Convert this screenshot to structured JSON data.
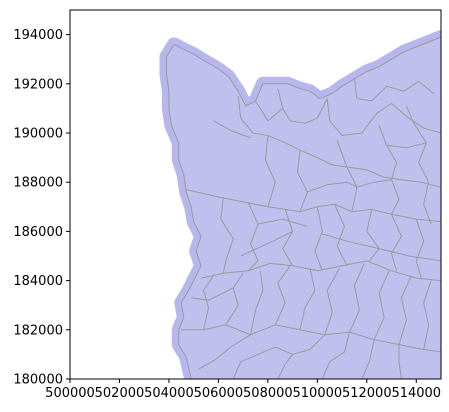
{
  "chart_data": {
    "type": "map",
    "title": "",
    "xlabel": "",
    "ylabel": "",
    "xlim": [
      500000,
      515000
    ],
    "ylim": [
      180000,
      195000
    ],
    "x_ticks": [
      "500000",
      "502000",
      "504000",
      "506000",
      "508000",
      "510000",
      "512000",
      "514000"
    ],
    "y_ticks": [
      "180000",
      "182000",
      "184000",
      "186000",
      "188000",
      "190000",
      "192000",
      "194000"
    ],
    "grid": false,
    "fill_color": "#c0c0ee",
    "halo_color": "#b7b7ee",
    "boundary_color": "#9a9a9a",
    "outline": [
      [
        503900,
        193100
      ],
      [
        504200,
        193600
      ],
      [
        504600,
        193400
      ],
      [
        505000,
        193200
      ],
      [
        505500,
        192900
      ],
      [
        506000,
        192600
      ],
      [
        506400,
        192300
      ],
      [
        506800,
        191700
      ],
      [
        507100,
        191100
      ],
      [
        507500,
        191300
      ],
      [
        507800,
        192000
      ],
      [
        508300,
        192000
      ],
      [
        508800,
        192000
      ],
      [
        509300,
        191800
      ],
      [
        509700,
        191700
      ],
      [
        510100,
        191400
      ],
      [
        510600,
        191600
      ],
      [
        511000,
        191900
      ],
      [
        511500,
        192200
      ],
      [
        512000,
        192500
      ],
      [
        512500,
        192700
      ],
      [
        513000,
        193000
      ],
      [
        513500,
        193300
      ],
      [
        514000,
        193500
      ],
      [
        514500,
        193700
      ],
      [
        515000,
        193900
      ],
      [
        515000,
        180000
      ],
      [
        504900,
        180000
      ],
      [
        504700,
        180900
      ],
      [
        504400,
        181400
      ],
      [
        504400,
        182000
      ],
      [
        504600,
        182500
      ],
      [
        504500,
        183100
      ],
      [
        504800,
        183600
      ],
      [
        505100,
        184200
      ],
      [
        505300,
        184600
      ],
      [
        505100,
        185200
      ],
      [
        505300,
        185800
      ],
      [
        505000,
        186400
      ],
      [
        504900,
        187000
      ],
      [
        504700,
        187600
      ],
      [
        504600,
        188300
      ],
      [
        504400,
        188900
      ],
      [
        504400,
        189600
      ],
      [
        504100,
        190300
      ],
      [
        504000,
        191000
      ],
      [
        504000,
        191700
      ],
      [
        503900,
        192400
      ]
    ],
    "boundaries": [
      [
        [
          504700,
          187700
        ],
        [
          506000,
          187400
        ],
        [
          507000,
          187200
        ],
        [
          508000,
          187000
        ],
        [
          508700,
          186900
        ],
        [
          509300,
          186800
        ],
        [
          510000,
          187000
        ],
        [
          510700,
          187100
        ],
        [
          511400,
          186800
        ],
        [
          512200,
          186900
        ],
        [
          513000,
          186700
        ],
        [
          514000,
          186500
        ],
        [
          515000,
          186400
        ]
      ],
      [
        [
          505300,
          184100
        ],
        [
          506200,
          184300
        ],
        [
          507200,
          184400
        ],
        [
          508100,
          184700
        ],
        [
          509000,
          184600
        ],
        [
          510000,
          184400
        ],
        [
          511000,
          184600
        ],
        [
          512000,
          184800
        ],
        [
          513000,
          184400
        ],
        [
          514000,
          184100
        ],
        [
          515000,
          184000
        ]
      ],
      [
        [
          504500,
          182000
        ],
        [
          505400,
          182000
        ],
        [
          506300,
          182200
        ],
        [
          507300,
          181800
        ],
        [
          508300,
          182200
        ],
        [
          509300,
          182000
        ],
        [
          510300,
          181800
        ],
        [
          511300,
          181900
        ],
        [
          512300,
          181600
        ],
        [
          513300,
          181400
        ],
        [
          514300,
          181200
        ],
        [
          515000,
          181100
        ]
      ],
      [
        [
          506800,
          191500
        ],
        [
          506900,
          190600
        ],
        [
          507400,
          190000
        ],
        [
          508000,
          189900
        ],
        [
          508700,
          189600
        ],
        [
          509300,
          189300
        ],
        [
          510000,
          189000
        ],
        [
          510600,
          188700
        ],
        [
          511300,
          188600
        ],
        [
          512000,
          188500
        ],
        [
          512700,
          188200
        ],
        [
          513400,
          188100
        ],
        [
          514200,
          188000
        ],
        [
          515000,
          187800
        ]
      ],
      [
        [
          505800,
          190500
        ],
        [
          506500,
          190100
        ],
        [
          507300,
          189800
        ]
      ],
      [
        [
          508400,
          191800
        ],
        [
          508600,
          191000
        ],
        [
          508900,
          190500
        ],
        [
          509500,
          190400
        ],
        [
          510000,
          190600
        ],
        [
          510400,
          191400
        ]
      ],
      [
        [
          510400,
          191400
        ],
        [
          510500,
          190500
        ],
        [
          511000,
          189900
        ],
        [
          511800,
          190000
        ],
        [
          512400,
          190800
        ],
        [
          513000,
          191200
        ],
        [
          513700,
          190600
        ],
        [
          514300,
          190200
        ],
        [
          515000,
          190000
        ]
      ],
      [
        [
          511500,
          192200
        ],
        [
          511600,
          191400
        ],
        [
          512200,
          191300
        ],
        [
          512800,
          191900
        ],
        [
          513500,
          191700
        ],
        [
          514100,
          192100
        ],
        [
          514700,
          191600
        ]
      ],
      [
        [
          510800,
          189700
        ],
        [
          511200,
          188600
        ],
        [
          511600,
          187800
        ],
        [
          511400,
          186800
        ]
      ],
      [
        [
          512500,
          190300
        ],
        [
          512800,
          189500
        ],
        [
          513200,
          188800
        ],
        [
          513000,
          188100
        ],
        [
          513300,
          187300
        ],
        [
          513000,
          186700
        ]
      ],
      [
        [
          513600,
          191100
        ],
        [
          513900,
          190400
        ],
        [
          514400,
          189600
        ],
        [
          514100,
          188800
        ],
        [
          514500,
          188000
        ],
        [
          514300,
          187100
        ],
        [
          514600,
          186300
        ]
      ],
      [
        [
          508000,
          189900
        ],
        [
          507900,
          188900
        ],
        [
          508300,
          188000
        ],
        [
          508000,
          187000
        ]
      ],
      [
        [
          509300,
          189300
        ],
        [
          509200,
          188400
        ],
        [
          509600,
          187600
        ],
        [
          509300,
          186800
        ]
      ],
      [
        [
          506200,
          187400
        ],
        [
          506100,
          186500
        ],
        [
          506600,
          185700
        ],
        [
          506300,
          184800
        ],
        [
          506200,
          184300
        ]
      ],
      [
        [
          507200,
          187200
        ],
        [
          507600,
          186300
        ],
        [
          507300,
          185500
        ],
        [
          507600,
          184800
        ],
        [
          507200,
          184400
        ]
      ],
      [
        [
          508700,
          186900
        ],
        [
          509000,
          186000
        ],
        [
          508600,
          185300
        ],
        [
          509000,
          184600
        ]
      ],
      [
        [
          510000,
          187000
        ],
        [
          510200,
          186000
        ],
        [
          509900,
          185200
        ],
        [
          510200,
          184400
        ]
      ],
      [
        [
          510700,
          187100
        ],
        [
          511100,
          186200
        ],
        [
          510800,
          185400
        ],
        [
          511200,
          184600
        ]
      ],
      [
        [
          512200,
          186900
        ],
        [
          512000,
          186000
        ],
        [
          512500,
          185300
        ],
        [
          512100,
          184800
        ]
      ],
      [
        [
          513000,
          186700
        ],
        [
          513400,
          185800
        ],
        [
          513000,
          185100
        ],
        [
          513200,
          184400
        ]
      ],
      [
        [
          514000,
          186500
        ],
        [
          514300,
          185600
        ],
        [
          514000,
          184800
        ],
        [
          514200,
          184100
        ]
      ],
      [
        [
          505400,
          182000
        ],
        [
          505600,
          182900
        ],
        [
          505400,
          183600
        ],
        [
          505800,
          184200
        ]
      ],
      [
        [
          506300,
          182200
        ],
        [
          506800,
          183000
        ],
        [
          506600,
          183700
        ],
        [
          507000,
          184300
        ]
      ],
      [
        [
          507300,
          181800
        ],
        [
          507500,
          182800
        ],
        [
          507800,
          183600
        ],
        [
          507700,
          184400
        ]
      ],
      [
        [
          508300,
          182200
        ],
        [
          508700,
          183100
        ],
        [
          508400,
          183900
        ],
        [
          508900,
          184600
        ]
      ],
      [
        [
          509300,
          182000
        ],
        [
          509500,
          182900
        ],
        [
          509900,
          183600
        ],
        [
          509700,
          184500
        ]
      ],
      [
        [
          510300,
          181800
        ],
        [
          510600,
          182700
        ],
        [
          510400,
          183600
        ],
        [
          510900,
          184500
        ]
      ],
      [
        [
          511300,
          181900
        ],
        [
          511700,
          182800
        ],
        [
          511500,
          183800
        ],
        [
          511900,
          184700
        ]
      ],
      [
        [
          512300,
          181600
        ],
        [
          512700,
          182500
        ],
        [
          512500,
          183500
        ],
        [
          512900,
          184400
        ]
      ],
      [
        [
          513300,
          181400
        ],
        [
          513600,
          182400
        ],
        [
          513400,
          183300
        ],
        [
          513800,
          184200
        ]
      ],
      [
        [
          514300,
          181200
        ],
        [
          514500,
          182200
        ],
        [
          514300,
          183100
        ],
        [
          514600,
          184000
        ]
      ],
      [
        [
          505200,
          180400
        ],
        [
          505900,
          180800
        ],
        [
          506500,
          181300
        ],
        [
          507300,
          181800
        ]
      ],
      [
        [
          506600,
          180000
        ],
        [
          506900,
          180700
        ],
        [
          507600,
          181000
        ],
        [
          508300,
          181300
        ],
        [
          509000,
          181000
        ],
        [
          509700,
          181200
        ],
        [
          510300,
          181800
        ]
      ],
      [
        [
          508400,
          180000
        ],
        [
          508700,
          180600
        ],
        [
          509000,
          181000
        ]
      ],
      [
        [
          510200,
          180000
        ],
        [
          510500,
          180700
        ],
        [
          511100,
          181100
        ],
        [
          511300,
          181900
        ]
      ],
      [
        [
          511800,
          180000
        ],
        [
          512100,
          180700
        ],
        [
          512300,
          181600
        ]
      ],
      [
        [
          513400,
          180000
        ],
        [
          513300,
          180700
        ],
        [
          513300,
          181400
        ]
      ],
      [
        [
          504900,
          183300
        ],
        [
          505600,
          183200
        ],
        [
          506600,
          183700
        ]
      ],
      [
        [
          506900,
          185000
        ],
        [
          508200,
          185600
        ],
        [
          509000,
          186000
        ]
      ],
      [
        [
          510200,
          185900
        ],
        [
          511200,
          185600
        ],
        [
          512500,
          185300
        ],
        [
          513700,
          185000
        ],
        [
          515000,
          184800
        ]
      ],
      [
        [
          507600,
          186300
        ],
        [
          508600,
          186500
        ],
        [
          509600,
          186200
        ]
      ],
      [
        [
          511600,
          187800
        ],
        [
          512300,
          188000
        ],
        [
          513000,
          188100
        ]
      ],
      [
        [
          512800,
          189500
        ],
        [
          513600,
          189400
        ],
        [
          514400,
          189600
        ]
      ],
      [
        [
          509600,
          187600
        ],
        [
          510400,
          187900
        ],
        [
          511200,
          188000
        ],
        [
          511600,
          187800
        ]
      ],
      [
        [
          507500,
          191300
        ],
        [
          508000,
          190500
        ],
        [
          508600,
          191000
        ]
      ]
    ]
  }
}
